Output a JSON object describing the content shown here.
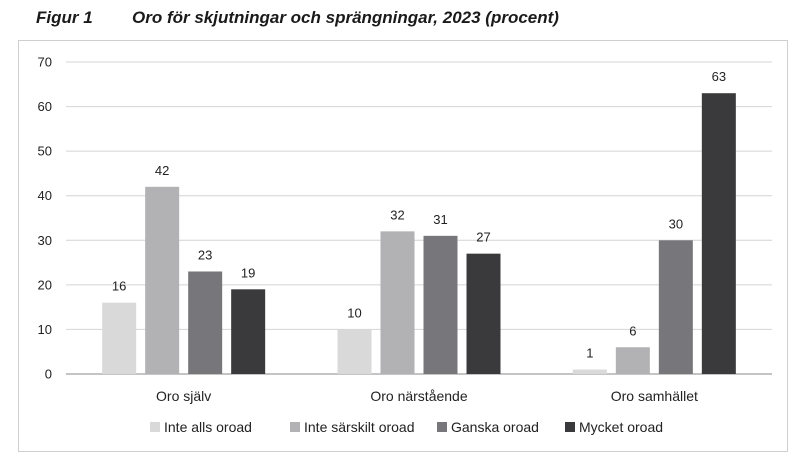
{
  "figure": {
    "number_label": "Figur 1",
    "title": "Oro för skjutningar och sprängningar, 2023 (procent)"
  },
  "chart_data": {
    "type": "bar",
    "title": "Oro för skjutningar och sprängningar, 2023 (procent)",
    "xlabel": "",
    "ylabel": "",
    "ylim": [
      0,
      70
    ],
    "yticks": [
      0,
      10,
      20,
      30,
      40,
      50,
      60,
      70
    ],
    "grid": true,
    "legend_position": "bottom",
    "categories": [
      "Oro själv",
      "Oro närstående",
      "Oro samhället"
    ],
    "series": [
      {
        "name": "Inte alls oroad",
        "color": "#d9d9d9",
        "values": [
          16,
          10,
          1
        ]
      },
      {
        "name": "Inte särskilt oroad",
        "color": "#b2b2b4",
        "values": [
          42,
          32,
          6
        ]
      },
      {
        "name": "Ganska oroad",
        "color": "#77777b",
        "values": [
          23,
          31,
          30
        ]
      },
      {
        "name": "Mycket oroad",
        "color": "#3a3a3c",
        "values": [
          19,
          27,
          63
        ]
      }
    ]
  }
}
